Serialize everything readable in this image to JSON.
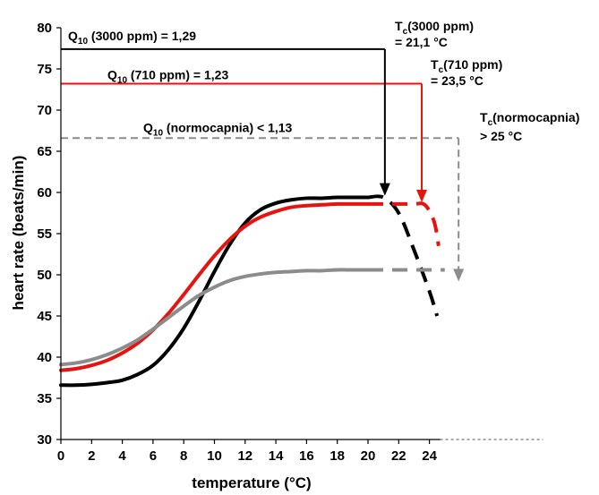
{
  "chart_data": {
    "type": "line",
    "xlabel": "temperature (°C)",
    "ylabel": "heart rate (beats/min)",
    "xlim": [
      0,
      25
    ],
    "ylim": [
      30,
      80
    ],
    "xticks": [
      0,
      2,
      4,
      6,
      8,
      10,
      12,
      14,
      16,
      18,
      20,
      22,
      24
    ],
    "yticks": [
      30,
      35,
      40,
      45,
      50,
      55,
      60,
      65,
      70,
      75,
      80
    ],
    "grid": false,
    "colors": {
      "ppm3000": "#000000",
      "ppm710": "#e8130f",
      "normocapnia": "#8c8c8c"
    },
    "series": [
      {
        "key": "ppm3000",
        "x": [
          0,
          1,
          2,
          3,
          4,
          5,
          6,
          7,
          8,
          9,
          10,
          11,
          12,
          13,
          14,
          15,
          16,
          17,
          18,
          19,
          20
        ],
        "y": [
          36.6,
          36.6,
          36.7,
          36.9,
          37.2,
          37.9,
          39.0,
          40.9,
          43.5,
          46.8,
          50.4,
          53.7,
          56.3,
          57.9,
          58.7,
          59.1,
          59.3,
          59.3,
          59.4,
          59.4,
          59.4
        ],
        "dashed_x": [
          20,
          21,
          22,
          23,
          24,
          24.5
        ],
        "dashed_y": [
          59.4,
          59.4,
          57.5,
          53.0,
          48.0,
          45.0
        ]
      },
      {
        "key": "ppm710",
        "x": [
          0,
          1,
          2,
          3,
          4,
          5,
          6,
          7,
          8,
          9,
          10,
          11,
          12,
          13,
          14,
          15,
          16,
          17,
          18,
          19,
          20
        ],
        "y": [
          38.4,
          38.6,
          39.0,
          39.6,
          40.5,
          41.7,
          43.3,
          45.3,
          47.6,
          50.0,
          52.3,
          54.3,
          55.9,
          57.0,
          57.7,
          58.2,
          58.4,
          58.5,
          58.6,
          58.6,
          58.6
        ],
        "dashed_x": [
          20,
          21,
          22,
          23,
          23.7,
          24.3,
          24.6
        ],
        "dashed_y": [
          58.6,
          58.6,
          58.6,
          58.6,
          58.5,
          56.5,
          53.5
        ]
      },
      {
        "key": "normocapnia",
        "x": [
          0,
          1,
          2,
          3,
          4,
          5,
          6,
          7,
          8,
          9,
          10,
          11,
          12,
          13,
          14,
          15,
          16,
          17,
          18,
          19,
          20
        ],
        "y": [
          39.1,
          39.3,
          39.7,
          40.3,
          41.1,
          42.1,
          43.4,
          44.8,
          46.2,
          47.5,
          48.5,
          49.3,
          49.8,
          50.1,
          50.3,
          50.4,
          50.5,
          50.5,
          50.6,
          50.6,
          50.6
        ],
        "dashed_x": [
          20,
          25
        ],
        "dashed_y": [
          50.6,
          50.6
        ]
      }
    ],
    "reference_lines": [
      {
        "key": "ppm3000",
        "y": 77.4,
        "x_from": 0,
        "x_to": 21.1,
        "dashed": false
      },
      {
        "key": "ppm710",
        "y": 73.2,
        "x_from": 0,
        "x_to": 23.5,
        "dashed": false
      },
      {
        "key": "normocapnia",
        "y": 66.6,
        "x_from": 0,
        "x_to": 25.9,
        "dashed": true
      }
    ],
    "arrows": [
      {
        "key": "ppm3000",
        "x": 21.1,
        "y_from": 77.4,
        "y_to": 59.6,
        "dashed": false
      },
      {
        "key": "ppm710",
        "x": 23.5,
        "y_from": 73.2,
        "y_to": 58.8,
        "dashed": false
      },
      {
        "key": "normocapnia",
        "x": 25.9,
        "y_from": 66.6,
        "y_to": 49.2,
        "dashed": true
      }
    ],
    "q10_labels": {
      "ppm3000": {
        "pre": "Q",
        "sub": "10",
        "post": " (3000 ppm) = 1,29"
      },
      "ppm710": {
        "pre": "Q",
        "sub": "10",
        "post": " (710 ppm) = 1,23"
      },
      "normocapnia": {
        "pre": "Q",
        "sub": "10",
        "post": " (normocapnia) < 1,13"
      }
    },
    "tc_labels": {
      "ppm3000": {
        "pre": "T",
        "sub": "c",
        "post": "(3000 ppm)",
        "value": "= 21,1 °C"
      },
      "ppm710": {
        "pre": "T",
        "sub": "c",
        "post": "(710 ppm)",
        "value": "= 23,5 °C"
      },
      "normocapnia": {
        "pre": "T",
        "sub": "c",
        "post": "(normocapnia)",
        "value": "> 25 °C"
      }
    }
  }
}
